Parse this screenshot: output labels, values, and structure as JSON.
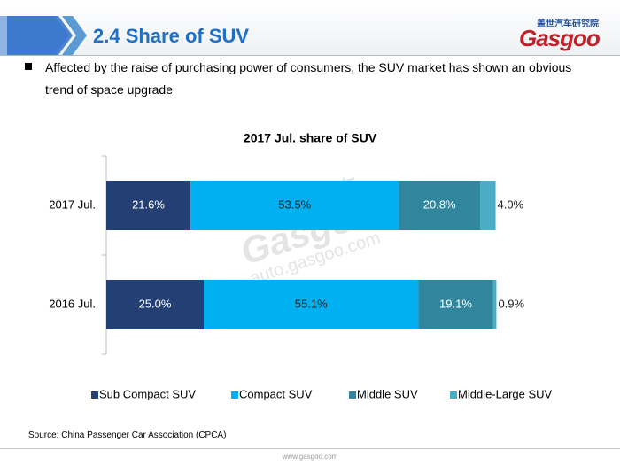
{
  "header": {
    "title": "2.4 Share of SUV",
    "logo_cn": "盖世汽车研究院",
    "logo": "Gasgoo"
  },
  "bullet": "Affected by the raise of purchasing power of consumers, the SUV market has shown an obvious trend of space upgrade",
  "watermark": {
    "cn": "盖世汽车",
    "logo": "Gasgoo",
    "url": "auto.gasgoo.com"
  },
  "chart_data": {
    "type": "stacked-barh",
    "title": "2017 Jul. share of SUV",
    "categories": [
      "2017 Jul.",
      "2016 Jul."
    ],
    "series": [
      {
        "name": "Sub Compact SUV",
        "color": "#243f73",
        "values": [
          21.6,
          25.0
        ],
        "value_labels": [
          "21.6%",
          "25.0%"
        ]
      },
      {
        "name": "Compact SUV",
        "color": "#00b0f0",
        "values": [
          53.5,
          55.1
        ],
        "value_labels": [
          "53.5%",
          "55.1%"
        ]
      },
      {
        "name": "Middle SUV",
        "color": "#31859c",
        "values": [
          20.8,
          19.1
        ],
        "value_labels": [
          "20.8%",
          "19.1%"
        ]
      },
      {
        "name": "Middle-Large SUV",
        "color": "#4bacc6",
        "values": [
          4.0,
          0.9
        ],
        "value_labels": [
          "4.0%",
          "0.9%"
        ]
      }
    ],
    "xlim": [
      0,
      100
    ],
    "legend": "bottom"
  },
  "source": "Source: China Passenger Car Association (CPCA)",
  "footer": "www.gasgoo.com"
}
